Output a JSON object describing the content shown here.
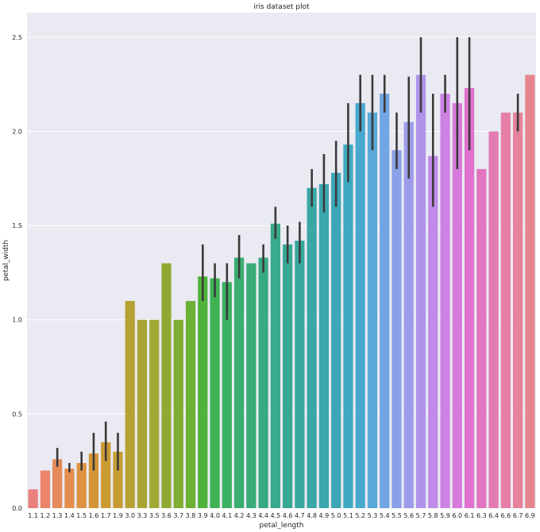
{
  "chart_data": {
    "type": "bar",
    "title": "iris dataset plot",
    "xlabel": "petal_length",
    "ylabel": "petal_width",
    "ylim": [
      0,
      2.5
    ],
    "yticks": [
      "0.0",
      "0.5",
      "1.0",
      "1.5",
      "2.0",
      "2.5"
    ],
    "grid": true,
    "background": "#eaeaf2",
    "error_color": "#3a3a3a",
    "categories": [
      "1.1",
      "1.2",
      "1.3",
      "1.4",
      "1.5",
      "1.6",
      "1.7",
      "1.9",
      "3.0",
      "3.3",
      "3.5",
      "3.6",
      "3.7",
      "3.8",
      "3.9",
      "4.0",
      "4.1",
      "4.2",
      "4.3",
      "4.4",
      "4.5",
      "4.6",
      "4.7",
      "4.8",
      "4.9",
      "5.0",
      "5.1",
      "5.2",
      "5.3",
      "5.4",
      "5.5",
      "5.6",
      "5.7",
      "5.8",
      "5.9",
      "6.0",
      "6.1",
      "6.3",
      "6.4",
      "6.6",
      "6.7",
      "6.9"
    ],
    "values": [
      0.1,
      0.2,
      0.26,
      0.21,
      0.24,
      0.29,
      0.35,
      0.3,
      1.1,
      1.0,
      1.0,
      1.3,
      1.0,
      1.1,
      1.23,
      1.22,
      1.2,
      1.33,
      1.3,
      1.33,
      1.51,
      1.4,
      1.42,
      1.7,
      1.72,
      1.78,
      1.93,
      2.15,
      2.1,
      2.2,
      1.9,
      2.05,
      2.3,
      1.87,
      2.2,
      2.15,
      2.23,
      1.8,
      2.0,
      2.1,
      2.1,
      2.3
    ],
    "error_low": [
      null,
      null,
      0.22,
      0.19,
      0.2,
      0.2,
      0.25,
      0.2,
      null,
      null,
      null,
      null,
      null,
      null,
      1.1,
      1.12,
      1.0,
      1.22,
      null,
      1.25,
      1.43,
      1.3,
      1.3,
      1.6,
      1.57,
      1.6,
      1.73,
      2.0,
      1.9,
      2.1,
      1.8,
      1.75,
      2.1,
      1.6,
      2.1,
      1.8,
      1.9,
      null,
      null,
      null,
      2.0,
      null
    ],
    "error_high": [
      null,
      null,
      0.32,
      0.24,
      0.3,
      0.4,
      0.46,
      0.4,
      null,
      null,
      null,
      null,
      null,
      null,
      1.4,
      1.3,
      1.3,
      1.45,
      null,
      1.4,
      1.6,
      1.5,
      1.52,
      1.8,
      1.88,
      1.95,
      2.15,
      2.3,
      2.3,
      2.3,
      2.1,
      2.29,
      2.5,
      2.2,
      2.3,
      2.5,
      2.5,
      null,
      null,
      null,
      2.2,
      null
    ],
    "colors": [
      "#e9807d",
      "#eb8468",
      "#e68a5a",
      "#e48e4d",
      "#dd9241",
      "#d49536",
      "#cc9a32",
      "#c59d32",
      "#b6a133",
      "#a9a533",
      "#9ea833",
      "#8faa33",
      "#7fad33",
      "#6cb134",
      "#4fb33a",
      "#3fb353",
      "#3cb162",
      "#3aae6f",
      "#39ac79",
      "#38aa83",
      "#38a98b",
      "#38a895",
      "#39a79e",
      "#3aa7a6",
      "#3ba7af",
      "#3ca7b6",
      "#3ea9c0",
      "#48a9cd",
      "#5aa8d9",
      "#71a5e3",
      "#8aa0e8",
      "#9e9cea",
      "#b093ea",
      "#c08ae8",
      "#ce82e4",
      "#d87adb",
      "#e170ce",
      "#e175c0",
      "#e47ab4",
      "#e57fa8",
      "#e6829c",
      "#e7858f"
    ]
  }
}
